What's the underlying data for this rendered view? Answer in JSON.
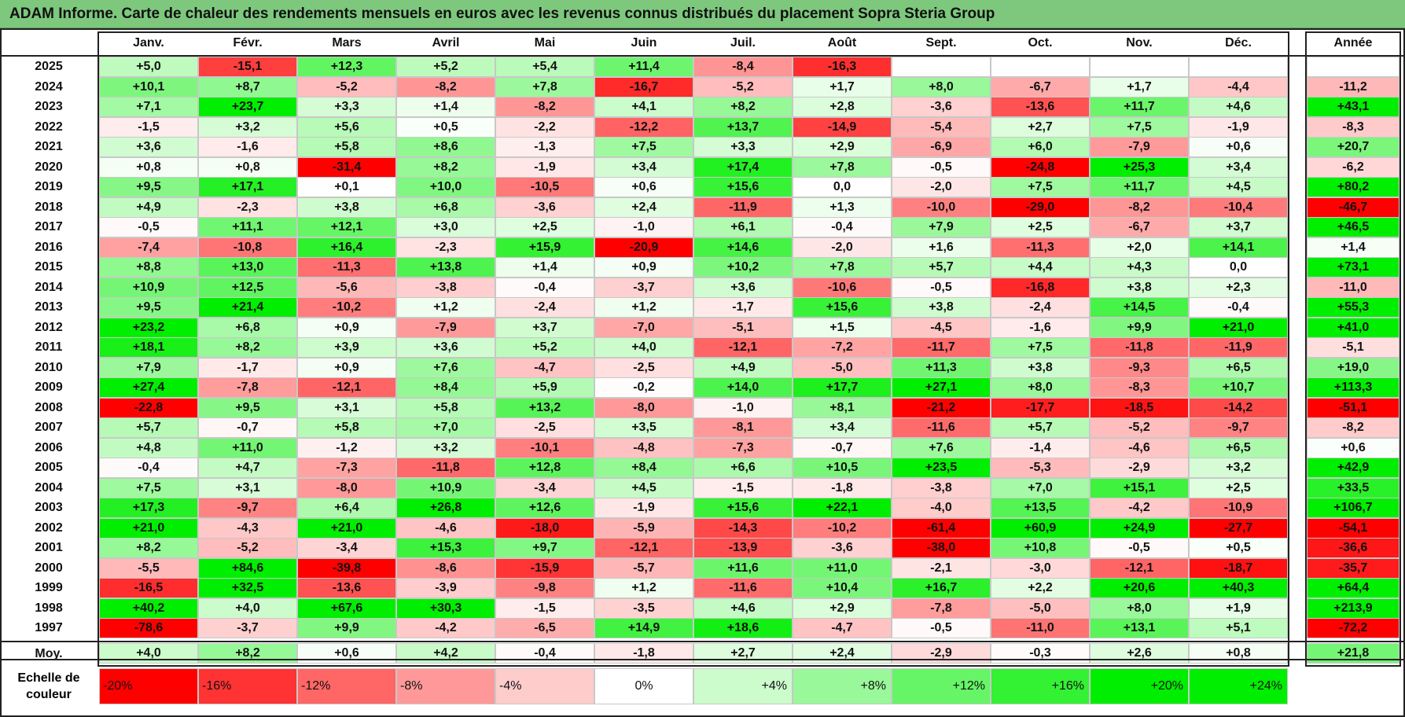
{
  "window": {
    "title": "ADAM Informe. Carte de chaleur des rendements mensuels en euros avec les revenus connus distribués du placement Sopra Steria Group"
  },
  "colors": {
    "title_bar": "#7dc87d",
    "negative_max": "#ff0000",
    "neutral": "#ffffff",
    "positive_max": "#00ee00"
  },
  "chart_data": {
    "type": "heatmap",
    "title": "ADAM Informe. Carte de chaleur des rendements mensuels en euros avec les revenus connus distribués du placement Sopra Steria Group",
    "months": [
      "Janv.",
      "Févr.",
      "Mars",
      "Avril",
      "Mai",
      "Juin",
      "Juil.",
      "Août",
      "Sept.",
      "Oct.",
      "Nov.",
      "Déc."
    ],
    "year_header": "Année",
    "rows": [
      {
        "year": "2025",
        "values": [
          "+5,0",
          "-15,1",
          "+12,3",
          "+5,2",
          "+5,4",
          "+11,4",
          "-8,4",
          "-16,3",
          "",
          "",
          "",
          ""
        ],
        "annual": ""
      },
      {
        "year": "2024",
        "values": [
          "+10,1",
          "+8,7",
          "-5,2",
          "-8,2",
          "+7,8",
          "-16,7",
          "-5,2",
          "+1,7",
          "+8,0",
          "-6,7",
          "+1,7",
          "-4,4"
        ],
        "annual": "-11,2"
      },
      {
        "year": "2023",
        "values": [
          "+7,1",
          "+23,7",
          "+3,3",
          "+1,4",
          "-8,2",
          "+4,1",
          "+8,2",
          "+2,8",
          "-3,6",
          "-13,6",
          "+11,7",
          "+4,6"
        ],
        "annual": "+43,1"
      },
      {
        "year": "2022",
        "values": [
          "-1,5",
          "+3,2",
          "+5,6",
          "+0,5",
          "-2,2",
          "-12,2",
          "+13,7",
          "-14,9",
          "-5,4",
          "+2,7",
          "+7,5",
          "-1,9"
        ],
        "annual": "-8,3"
      },
      {
        "year": "2021",
        "values": [
          "+3,6",
          "-1,6",
          "+5,8",
          "+8,6",
          "-1,3",
          "+7,5",
          "+3,3",
          "+2,9",
          "-6,9",
          "+6,0",
          "-7,9",
          "+0,6"
        ],
        "annual": "+20,7"
      },
      {
        "year": "2020",
        "values": [
          "+0,8",
          "+0,8",
          "-31,4",
          "+8,2",
          "-1,9",
          "+3,4",
          "+17,4",
          "+7,8",
          "-0,5",
          "-24,8",
          "+25,3",
          "+3,4"
        ],
        "annual": "-6,2"
      },
      {
        "year": "2019",
        "values": [
          "+9,5",
          "+17,1",
          "+0,1",
          "+10,0",
          "-10,5",
          "+0,6",
          "+15,6",
          "0,0",
          "-2,0",
          "+7,5",
          "+11,7",
          "+4,5"
        ],
        "annual": "+80,2"
      },
      {
        "year": "2018",
        "values": [
          "+4,9",
          "-2,3",
          "+3,8",
          "+6,8",
          "-3,6",
          "+2,4",
          "-11,9",
          "+1,3",
          "-10,0",
          "-29,0",
          "-8,2",
          "-10,4"
        ],
        "annual": "-46,7"
      },
      {
        "year": "2017",
        "values": [
          "-0,5",
          "+11,1",
          "+12,1",
          "+3,0",
          "+2,5",
          "-1,0",
          "+6,1",
          "-0,4",
          "+7,9",
          "+2,5",
          "-6,7",
          "+3,7"
        ],
        "annual": "+46,5"
      },
      {
        "year": "2016",
        "values": [
          "-7,4",
          "-10,8",
          "+16,4",
          "-2,3",
          "+15,9",
          "-20,9",
          "+14,6",
          "-2,0",
          "+1,6",
          "-11,3",
          "+2,0",
          "+14,1"
        ],
        "annual": "+1,4"
      },
      {
        "year": "2015",
        "values": [
          "+8,8",
          "+13,0",
          "-11,3",
          "+13,8",
          "+1,4",
          "+0,9",
          "+10,2",
          "+7,8",
          "+5,7",
          "+4,4",
          "+4,3",
          "0,0"
        ],
        "annual": "+73,1"
      },
      {
        "year": "2014",
        "values": [
          "+10,9",
          "+12,5",
          "-5,6",
          "-3,8",
          "-0,4",
          "-3,7",
          "+3,6",
          "-10,6",
          "-0,5",
          "-16,8",
          "+3,8",
          "+2,3"
        ],
        "annual": "-11,0"
      },
      {
        "year": "2013",
        "values": [
          "+9,5",
          "+21,4",
          "-10,2",
          "+1,2",
          "-2,4",
          "+1,2",
          "-1,7",
          "+15,6",
          "+3,8",
          "-2,4",
          "+14,5",
          "-0,4"
        ],
        "annual": "+55,3"
      },
      {
        "year": "2012",
        "values": [
          "+23,2",
          "+6,8",
          "+0,9",
          "-7,9",
          "+3,7",
          "-7,0",
          "-5,1",
          "+1,5",
          "-4,5",
          "-1,6",
          "+9,9",
          "+21,0"
        ],
        "annual": "+41,0"
      },
      {
        "year": "2011",
        "values": [
          "+18,1",
          "+8,2",
          "+3,9",
          "+3,6",
          "+5,2",
          "+4,0",
          "-12,1",
          "-7,2",
          "-11,7",
          "+7,5",
          "-11,8",
          "-11,9"
        ],
        "annual": "-5,1"
      },
      {
        "year": "2010",
        "values": [
          "+7,9",
          "-1,7",
          "+0,9",
          "+7,6",
          "-4,7",
          "-2,5",
          "+4,9",
          "-5,0",
          "+11,3",
          "+3,8",
          "-9,3",
          "+6,5"
        ],
        "annual": "+19,0"
      },
      {
        "year": "2009",
        "values": [
          "+27,4",
          "-7,8",
          "-12,1",
          "+8,4",
          "+5,9",
          "-0,2",
          "+14,0",
          "+17,7",
          "+27,1",
          "+8,0",
          "-8,3",
          "+10,7"
        ],
        "annual": "+113,3"
      },
      {
        "year": "2008",
        "values": [
          "-22,8",
          "+9,5",
          "+3,1",
          "+5,8",
          "+13,2",
          "-8,0",
          "-1,0",
          "+8,1",
          "-21,2",
          "-17,7",
          "-18,5",
          "-14,2"
        ],
        "annual": "-51,1"
      },
      {
        "year": "2007",
        "values": [
          "+5,7",
          "-0,7",
          "+5,8",
          "+7,0",
          "-2,5",
          "+3,5",
          "-8,1",
          "+3,4",
          "-11,6",
          "+5,7",
          "-5,2",
          "-9,7"
        ],
        "annual": "-8,2"
      },
      {
        "year": "2006",
        "values": [
          "+4,8",
          "+11,0",
          "-1,2",
          "+3,2",
          "-10,1",
          "-4,8",
          "-7,3",
          "-0,7",
          "+7,6",
          "-1,4",
          "-4,6",
          "+6,5"
        ],
        "annual": "+0,6"
      },
      {
        "year": "2005",
        "values": [
          "-0,4",
          "+4,7",
          "-7,3",
          "-11,8",
          "+12,8",
          "+8,4",
          "+6,6",
          "+10,5",
          "+23,5",
          "-5,3",
          "-2,9",
          "+3,2"
        ],
        "annual": "+42,9"
      },
      {
        "year": "2004",
        "values": [
          "+7,5",
          "+3,1",
          "-8,0",
          "+10,9",
          "-3,4",
          "+4,5",
          "-1,5",
          "-1,8",
          "-3,8",
          "+7,0",
          "+15,1",
          "+2,5"
        ],
        "annual": "+33,5"
      },
      {
        "year": "2003",
        "values": [
          "+17,3",
          "-9,7",
          "+6,4",
          "+26,8",
          "+12,6",
          "-1,9",
          "+15,6",
          "+22,1",
          "-4,0",
          "+13,5",
          "-4,2",
          "-10,9"
        ],
        "annual": "+106,7"
      },
      {
        "year": "2002",
        "values": [
          "+21,0",
          "-4,3",
          "+21,0",
          "-4,6",
          "-18,0",
          "-5,9",
          "-14,3",
          "-10,2",
          "-61,4",
          "+60,9",
          "+24,9",
          "-27,7"
        ],
        "annual": "-54,1"
      },
      {
        "year": "2001",
        "values": [
          "+8,2",
          "-5,2",
          "-3,4",
          "+15,3",
          "+9,7",
          "-12,1",
          "-13,9",
          "-3,6",
          "-38,0",
          "+10,8",
          "-0,5",
          "+0,5"
        ],
        "annual": "-36,6"
      },
      {
        "year": "2000",
        "values": [
          "-5,5",
          "+84,6",
          "-39,8",
          "-8,6",
          "-15,9",
          "-5,7",
          "+11,6",
          "+11,0",
          "-2,1",
          "-3,0",
          "-12,1",
          "-18,7"
        ],
        "annual": "-35,7"
      },
      {
        "year": "1999",
        "values": [
          "-16,5",
          "+32,5",
          "-13,6",
          "-3,9",
          "-9,8",
          "+1,2",
          "-11,6",
          "+10,4",
          "+16,7",
          "+2,2",
          "+20,6",
          "+40,3"
        ],
        "annual": "+64,4"
      },
      {
        "year": "1998",
        "values": [
          "+40,2",
          "+4,0",
          "+67,6",
          "+30,3",
          "-1,5",
          "-3,5",
          "+4,6",
          "+2,9",
          "-7,8",
          "-5,0",
          "+8,0",
          "+1,9"
        ],
        "annual": "+213,9"
      },
      {
        "year": "1997",
        "values": [
          "-78,6",
          "-3,7",
          "+9,9",
          "-4,2",
          "-6,5",
          "+14,9",
          "+18,6",
          "-4,7",
          "-0,5",
          "-11,0",
          "+13,1",
          "+5,1"
        ],
        "annual": "-72,2"
      }
    ],
    "average": {
      "label": "Moy.",
      "values": [
        "+4,0",
        "+8,2",
        "+0,6",
        "+4,2",
        "-0,4",
        "-1,8",
        "+2,7",
        "+2,4",
        "-2,9",
        "-0,3",
        "+2,6",
        "+0,8"
      ],
      "annual": "+21,8"
    },
    "scale": {
      "label_line1": "Echelle de",
      "label_line2": "couleur",
      "steps": [
        {
          "label": "-20%",
          "value": -20,
          "align": "left"
        },
        {
          "label": "-16%",
          "value": -16,
          "align": "left"
        },
        {
          "label": "-12%",
          "value": -12,
          "align": "left"
        },
        {
          "label": "-8%",
          "value": -8,
          "align": "left"
        },
        {
          "label": "-4%",
          "value": -4,
          "align": "left"
        },
        {
          "label": "0%",
          "value": 0,
          "align": "center"
        },
        {
          "label": "+4%",
          "value": 4,
          "align": "right"
        },
        {
          "label": "+8%",
          "value": 8,
          "align": "right"
        },
        {
          "label": "+12%",
          "value": 12,
          "align": "right"
        },
        {
          "label": "+16%",
          "value": 16,
          "align": "right"
        },
        {
          "label": "+20%",
          "value": 20,
          "align": "right"
        },
        {
          "label": "+24%",
          "value": 24,
          "align": "right"
        }
      ]
    }
  }
}
